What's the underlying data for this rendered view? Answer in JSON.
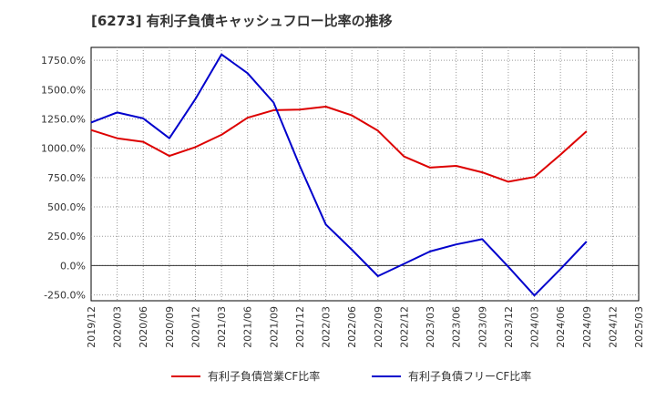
{
  "chart_data": {
    "type": "line",
    "title": "[6273]  有利子負債キャッシュフロー比率の推移",
    "xlabel": "",
    "ylabel": "",
    "x": [
      "2019/12",
      "2020/03",
      "2020/06",
      "2020/09",
      "2020/12",
      "2021/03",
      "2021/06",
      "2021/09",
      "2021/12",
      "2022/03",
      "2022/06",
      "2022/09",
      "2022/12",
      "2023/03",
      "2023/06",
      "2023/09",
      "2023/12",
      "2024/03",
      "2024/06",
      "2024/09",
      "2024/12",
      "2025/03"
    ],
    "ylim": [
      -300,
      1860
    ],
    "yticks": [
      -250,
      0,
      250,
      500,
      750,
      1000,
      1250,
      1500,
      1750
    ],
    "ytick_labels": [
      "-250.0%",
      "0.0%",
      "250.0%",
      "500.0%",
      "750.0%",
      "1000.0%",
      "1250.0%",
      "1500.0%",
      "1750.0%"
    ],
    "grid": true,
    "legend_position": "bottom",
    "series": [
      {
        "name": "有利子負債営業CF比率",
        "color": "#dd0000",
        "values": [
          1155,
          1085,
          1055,
          935,
          1010,
          1115,
          1260,
          1325,
          1330,
          1355,
          1280,
          1150,
          930,
          835,
          850,
          795,
          715,
          755,
          945,
          1145,
          null,
          null
        ]
      },
      {
        "name": "有利子負債フリーCF比率",
        "color": "#0000cc",
        "values": [
          1220,
          1305,
          1255,
          1085,
          1420,
          1800,
          1640,
          1390,
          850,
          350,
          135,
          -90,
          15,
          120,
          180,
          225,
          -10,
          -255,
          -30,
          205,
          null,
          null
        ]
      }
    ]
  }
}
